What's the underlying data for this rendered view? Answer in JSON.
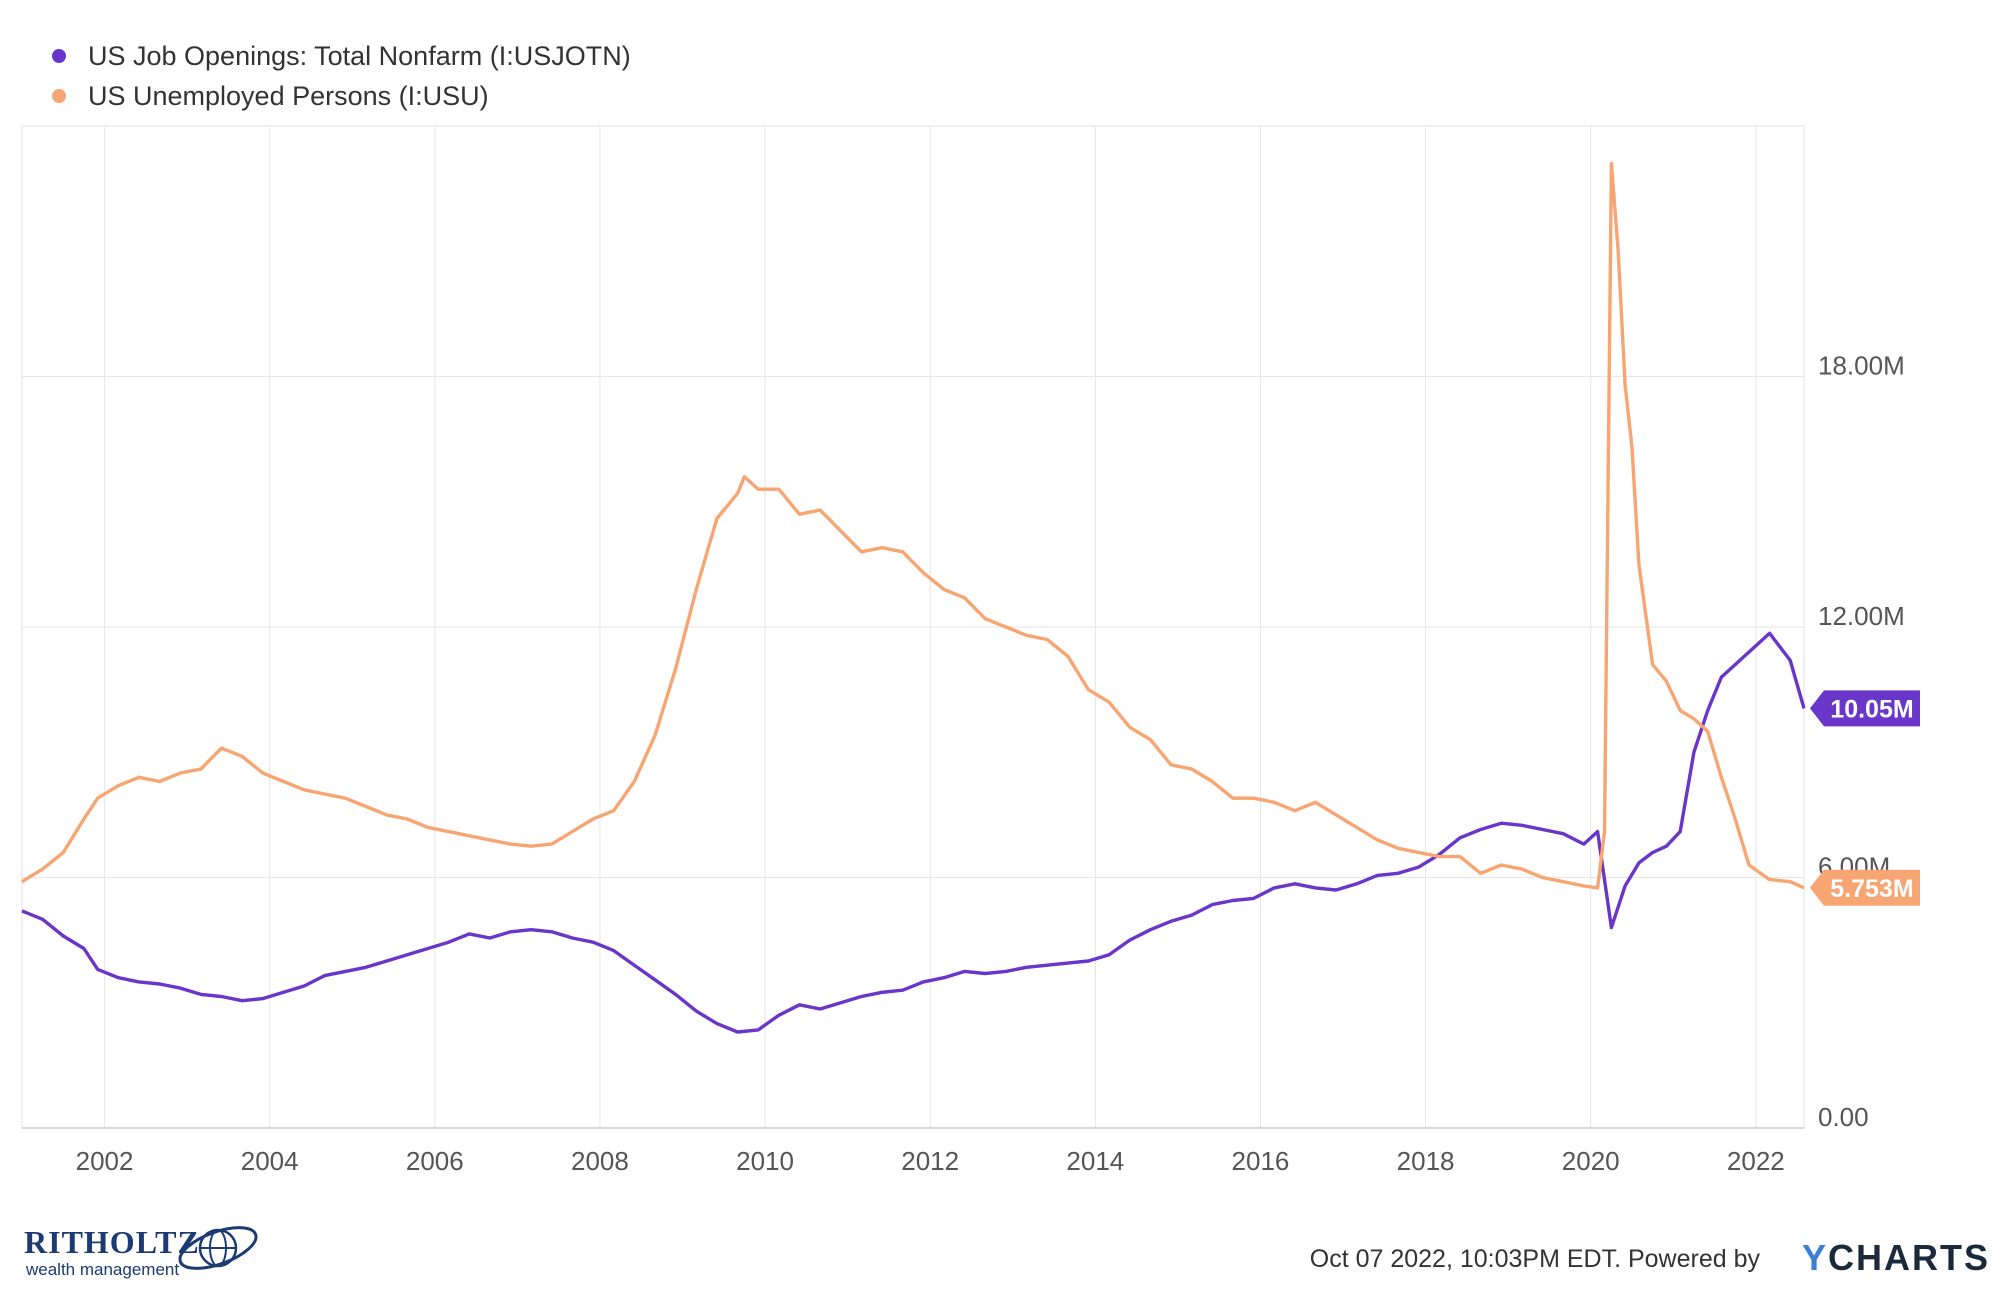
{
  "chart_data": {
    "type": "line",
    "title": "",
    "xlabel": "",
    "ylabel": "",
    "x_start": "2001-01",
    "x_end": "2022-08",
    "ylim": [
      0,
      24
    ],
    "xticks": [
      "2002",
      "2004",
      "2006",
      "2008",
      "2010",
      "2012",
      "2014",
      "2016",
      "2018",
      "2020",
      "2022"
    ],
    "yticks": [
      {
        "value": 0,
        "label": "0.00"
      },
      {
        "value": 6,
        "label": "6.00M"
      },
      {
        "value": 12,
        "label": "12.00M"
      },
      {
        "value": 18,
        "label": "18.00M"
      }
    ],
    "grid": true,
    "legend_position": "top-left",
    "series": [
      {
        "name": "US Job Openings: Total Nonfarm (I:USJOTN)",
        "color": "#6a35c9",
        "end_label": "10.05M",
        "end_value": 10.05,
        "points": [
          [
            "2001-01",
            5.2
          ],
          [
            "2001-04",
            5.0
          ],
          [
            "2001-07",
            4.6
          ],
          [
            "2001-10",
            4.3
          ],
          [
            "2001-12",
            3.8
          ],
          [
            "2002-03",
            3.6
          ],
          [
            "2002-06",
            3.5
          ],
          [
            "2002-09",
            3.45
          ],
          [
            "2002-12",
            3.35
          ],
          [
            "2003-03",
            3.2
          ],
          [
            "2003-06",
            3.15
          ],
          [
            "2003-09",
            3.05
          ],
          [
            "2003-12",
            3.1
          ],
          [
            "2004-03",
            3.25
          ],
          [
            "2004-06",
            3.4
          ],
          [
            "2004-09",
            3.65
          ],
          [
            "2004-12",
            3.75
          ],
          [
            "2005-03",
            3.85
          ],
          [
            "2005-06",
            4.0
          ],
          [
            "2005-09",
            4.15
          ],
          [
            "2005-12",
            4.3
          ],
          [
            "2006-03",
            4.45
          ],
          [
            "2006-06",
            4.65
          ],
          [
            "2006-09",
            4.55
          ],
          [
            "2006-12",
            4.7
          ],
          [
            "2007-03",
            4.75
          ],
          [
            "2007-06",
            4.7
          ],
          [
            "2007-09",
            4.55
          ],
          [
            "2007-12",
            4.45
          ],
          [
            "2008-03",
            4.25
          ],
          [
            "2008-06",
            3.9
          ],
          [
            "2008-09",
            3.55
          ],
          [
            "2008-12",
            3.2
          ],
          [
            "2009-03",
            2.8
          ],
          [
            "2009-06",
            2.5
          ],
          [
            "2009-09",
            2.3
          ],
          [
            "2009-12",
            2.35
          ],
          [
            "2010-03",
            2.7
          ],
          [
            "2010-06",
            2.95
          ],
          [
            "2010-09",
            2.85
          ],
          [
            "2010-12",
            3.0
          ],
          [
            "2011-03",
            3.15
          ],
          [
            "2011-06",
            3.25
          ],
          [
            "2011-09",
            3.3
          ],
          [
            "2011-12",
            3.5
          ],
          [
            "2012-03",
            3.6
          ],
          [
            "2012-06",
            3.75
          ],
          [
            "2012-09",
            3.7
          ],
          [
            "2012-12",
            3.75
          ],
          [
            "2013-03",
            3.85
          ],
          [
            "2013-06",
            3.9
          ],
          [
            "2013-09",
            3.95
          ],
          [
            "2013-12",
            4.0
          ],
          [
            "2014-03",
            4.15
          ],
          [
            "2014-06",
            4.5
          ],
          [
            "2014-09",
            4.75
          ],
          [
            "2014-12",
            4.95
          ],
          [
            "2015-03",
            5.1
          ],
          [
            "2015-06",
            5.35
          ],
          [
            "2015-09",
            5.45
          ],
          [
            "2015-12",
            5.5
          ],
          [
            "2016-03",
            5.75
          ],
          [
            "2016-06",
            5.85
          ],
          [
            "2016-09",
            5.75
          ],
          [
            "2016-12",
            5.7
          ],
          [
            "2017-03",
            5.85
          ],
          [
            "2017-06",
            6.05
          ],
          [
            "2017-09",
            6.1
          ],
          [
            "2017-12",
            6.25
          ],
          [
            "2018-03",
            6.55
          ],
          [
            "2018-06",
            6.95
          ],
          [
            "2018-09",
            7.15
          ],
          [
            "2018-12",
            7.3
          ],
          [
            "2019-03",
            7.25
          ],
          [
            "2019-06",
            7.15
          ],
          [
            "2019-09",
            7.05
          ],
          [
            "2019-12",
            6.8
          ],
          [
            "2020-02",
            7.1
          ],
          [
            "2020-04",
            4.8
          ],
          [
            "2020-06",
            5.8
          ],
          [
            "2020-08",
            6.35
          ],
          [
            "2020-10",
            6.6
          ],
          [
            "2020-12",
            6.75
          ],
          [
            "2021-02",
            7.1
          ],
          [
            "2021-04",
            9.0
          ],
          [
            "2021-06",
            10.0
          ],
          [
            "2021-08",
            10.8
          ],
          [
            "2021-10",
            11.1
          ],
          [
            "2021-12",
            11.4
          ],
          [
            "2022-03",
            11.85
          ],
          [
            "2022-06",
            11.2
          ],
          [
            "2022-08",
            10.05
          ]
        ]
      },
      {
        "name": "US Unemployed Persons (I:USU)",
        "color": "#f7a572",
        "end_label": "5.753M",
        "end_value": 5.753,
        "points": [
          [
            "2001-01",
            5.9
          ],
          [
            "2001-04",
            6.2
          ],
          [
            "2001-07",
            6.6
          ],
          [
            "2001-10",
            7.4
          ],
          [
            "2001-12",
            7.9
          ],
          [
            "2002-03",
            8.2
          ],
          [
            "2002-06",
            8.4
          ],
          [
            "2002-09",
            8.3
          ],
          [
            "2002-12",
            8.5
          ],
          [
            "2003-03",
            8.6
          ],
          [
            "2003-06",
            9.1
          ],
          [
            "2003-09",
            8.9
          ],
          [
            "2003-12",
            8.5
          ],
          [
            "2004-03",
            8.3
          ],
          [
            "2004-06",
            8.1
          ],
          [
            "2004-09",
            8.0
          ],
          [
            "2004-12",
            7.9
          ],
          [
            "2005-03",
            7.7
          ],
          [
            "2005-06",
            7.5
          ],
          [
            "2005-09",
            7.4
          ],
          [
            "2005-12",
            7.2
          ],
          [
            "2006-03",
            7.1
          ],
          [
            "2006-06",
            7.0
          ],
          [
            "2006-09",
            6.9
          ],
          [
            "2006-12",
            6.8
          ],
          [
            "2007-03",
            6.75
          ],
          [
            "2007-06",
            6.8
          ],
          [
            "2007-09",
            7.1
          ],
          [
            "2007-12",
            7.4
          ],
          [
            "2008-03",
            7.6
          ],
          [
            "2008-06",
            8.3
          ],
          [
            "2008-09",
            9.4
          ],
          [
            "2008-12",
            11.0
          ],
          [
            "2009-03",
            12.9
          ],
          [
            "2009-06",
            14.6
          ],
          [
            "2009-09",
            15.2
          ],
          [
            "2009-10",
            15.6
          ],
          [
            "2009-12",
            15.3
          ],
          [
            "2010-03",
            15.3
          ],
          [
            "2010-06",
            14.7
          ],
          [
            "2010-09",
            14.8
          ],
          [
            "2010-12",
            14.3
          ],
          [
            "2011-03",
            13.8
          ],
          [
            "2011-06",
            13.9
          ],
          [
            "2011-09",
            13.8
          ],
          [
            "2011-12",
            13.3
          ],
          [
            "2012-03",
            12.9
          ],
          [
            "2012-06",
            12.7
          ],
          [
            "2012-09",
            12.2
          ],
          [
            "2012-12",
            12.0
          ],
          [
            "2013-03",
            11.8
          ],
          [
            "2013-06",
            11.7
          ],
          [
            "2013-09",
            11.3
          ],
          [
            "2013-12",
            10.5
          ],
          [
            "2014-03",
            10.2
          ],
          [
            "2014-06",
            9.6
          ],
          [
            "2014-09",
            9.3
          ],
          [
            "2014-12",
            8.7
          ],
          [
            "2015-03",
            8.6
          ],
          [
            "2015-06",
            8.3
          ],
          [
            "2015-09",
            7.9
          ],
          [
            "2015-12",
            7.9
          ],
          [
            "2016-03",
            7.8
          ],
          [
            "2016-06",
            7.6
          ],
          [
            "2016-09",
            7.8
          ],
          [
            "2016-12",
            7.5
          ],
          [
            "2017-03",
            7.2
          ],
          [
            "2017-06",
            6.9
          ],
          [
            "2017-09",
            6.7
          ],
          [
            "2017-12",
            6.6
          ],
          [
            "2018-03",
            6.5
          ],
          [
            "2018-06",
            6.5
          ],
          [
            "2018-09",
            6.1
          ],
          [
            "2018-12",
            6.3
          ],
          [
            "2019-03",
            6.2
          ],
          [
            "2019-06",
            6.0
          ],
          [
            "2019-09",
            5.9
          ],
          [
            "2019-12",
            5.8
          ],
          [
            "2020-02",
            5.75
          ],
          [
            "2020-03",
            7.1
          ],
          [
            "2020-04",
            23.1
          ],
          [
            "2020-05",
            21.0
          ],
          [
            "2020-06",
            17.8
          ],
          [
            "2020-07",
            16.3
          ],
          [
            "2020-08",
            13.5
          ],
          [
            "2020-10",
            11.1
          ],
          [
            "2020-12",
            10.7
          ],
          [
            "2021-02",
            10.0
          ],
          [
            "2021-04",
            9.8
          ],
          [
            "2021-06",
            9.5
          ],
          [
            "2021-08",
            8.4
          ],
          [
            "2021-10",
            7.4
          ],
          [
            "2021-12",
            6.3
          ],
          [
            "2022-03",
            5.95
          ],
          [
            "2022-06",
            5.9
          ],
          [
            "2022-08",
            5.753
          ]
        ]
      }
    ]
  },
  "footer": {
    "timestamp": "Oct 07 2022, 10:03PM EDT. Powered by ",
    "brand_y": "Y",
    "brand_rest": "CHARTS"
  },
  "logo": {
    "name": "RITHOLTZ",
    "subtitle": "wealth management"
  }
}
